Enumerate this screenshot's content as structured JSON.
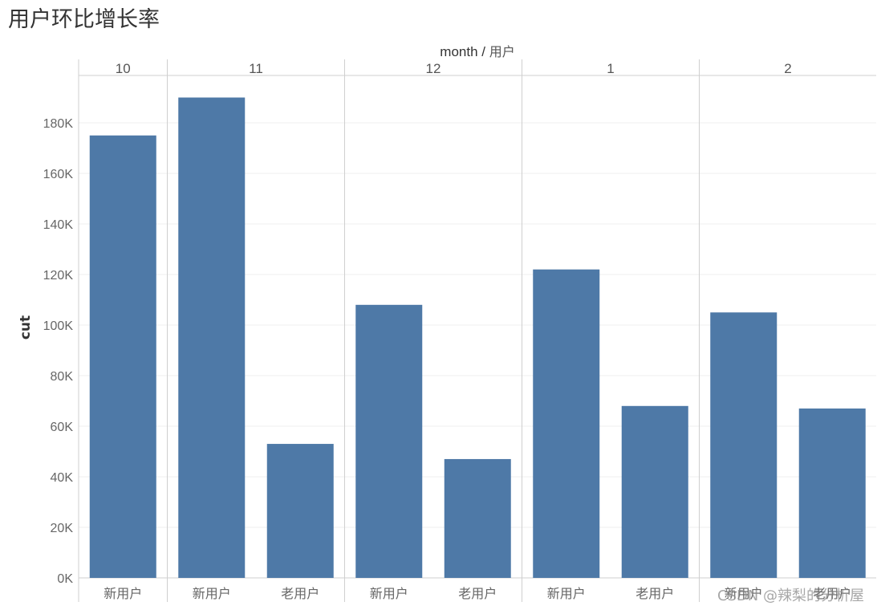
{
  "chart_data": {
    "type": "bar",
    "title": "用户环比增长率",
    "column_header": {
      "field": "month",
      "separator": " / ",
      "subfield": "用户"
    },
    "ylabel": "cut",
    "ylim": [
      0,
      200000
    ],
    "yticks": [
      {
        "value": 0,
        "label": "0K"
      },
      {
        "value": 20000,
        "label": "20K"
      },
      {
        "value": 40000,
        "label": "40K"
      },
      {
        "value": 60000,
        "label": "60K"
      },
      {
        "value": 80000,
        "label": "80K"
      },
      {
        "value": 100000,
        "label": "100K"
      },
      {
        "value": 120000,
        "label": "120K"
      },
      {
        "value": 140000,
        "label": "140K"
      },
      {
        "value": 160000,
        "label": "160K"
      },
      {
        "value": 180000,
        "label": "180K"
      }
    ],
    "grid": true,
    "bar_color": "#4e79a7",
    "groups": [
      {
        "month": "10",
        "bars": [
          {
            "category": "新用户",
            "value": 175000
          }
        ]
      },
      {
        "month": "11",
        "bars": [
          {
            "category": "新用户",
            "value": 190000
          },
          {
            "category": "老用户",
            "value": 53000
          }
        ]
      },
      {
        "month": "12",
        "bars": [
          {
            "category": "新用户",
            "value": 108000
          },
          {
            "category": "老用户",
            "value": 47000
          }
        ]
      },
      {
        "month": "1",
        "bars": [
          {
            "category": "新用户",
            "value": 122000
          },
          {
            "category": "老用户",
            "value": 68000
          }
        ]
      },
      {
        "month": "2",
        "bars": [
          {
            "category": "新用户",
            "value": 105000
          },
          {
            "category": "老用户",
            "value": 67000
          }
        ]
      }
    ]
  },
  "watermark": "CSDN @辣梨的分析屋"
}
